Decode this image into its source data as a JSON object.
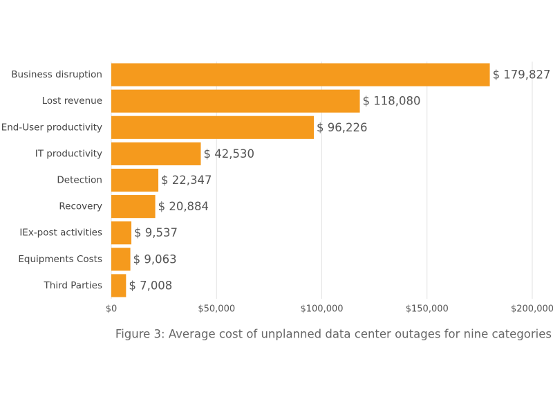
{
  "chart_data": {
    "type": "hbar",
    "caption": "Figure 3: Average cost of unplanned data center outages for nine categories",
    "categories": [
      "Business disruption",
      "Lost revenue",
      "End-User productivity",
      "IT productivity",
      "Detection",
      "Recovery",
      "IEx-post activities",
      "Equipments Costs",
      "Third Parties"
    ],
    "values": [
      179827,
      118080,
      96226,
      42530,
      22347,
      20884,
      9537,
      9063,
      7008
    ],
    "value_labels": [
      "$ 179,827",
      "$ 118,080",
      "$ 96,226",
      "$ 42,530",
      "$ 22,347",
      "$ 20,884",
      "$ 9,537",
      "$ 9,063",
      "$ 7,008"
    ],
    "color": "#f59a1d",
    "xlim": [
      0,
      200000
    ],
    "xticks": [
      {
        "value": 0,
        "label": "$0"
      },
      {
        "value": 50000,
        "label": "$50,000"
      },
      {
        "value": 100000,
        "label": "$100,000"
      },
      {
        "value": 150000,
        "label": "$150,000"
      },
      {
        "value": 200000,
        "label": "$200,000"
      }
    ],
    "grid": true
  }
}
